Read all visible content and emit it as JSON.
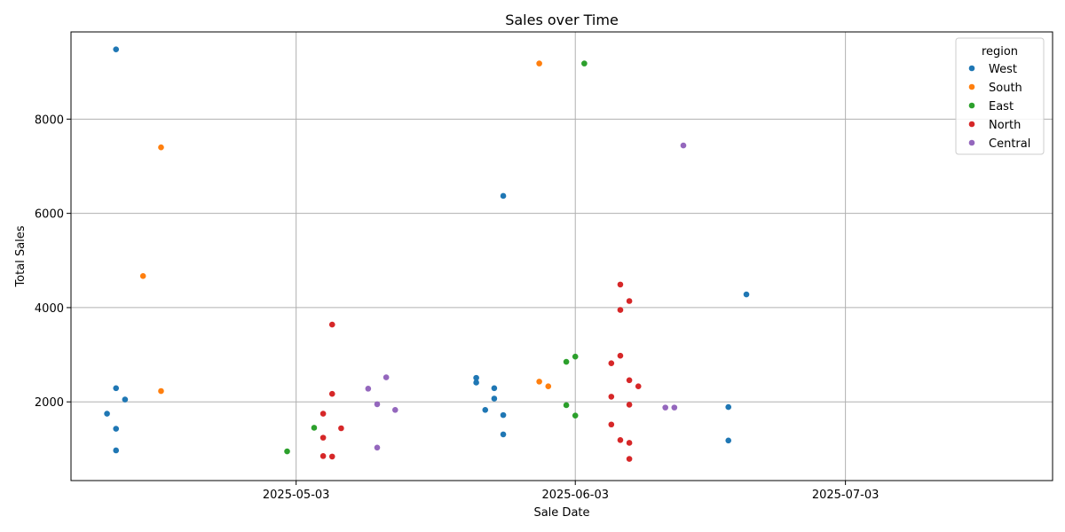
{
  "chart_data": {
    "type": "scatter",
    "title": "Sales over Time",
    "xlabel": "Sale Date",
    "ylabel": "Total Sales",
    "x_axis_type": "date",
    "xlim": [
      "2025-04-08",
      "2025-07-26"
    ],
    "ylim": [
      330,
      9850
    ],
    "x_ticks": [
      "2025-05-03",
      "2025-06-03",
      "2025-07-03"
    ],
    "y_ticks": [
      2000,
      4000,
      6000,
      8000
    ],
    "grid": true,
    "legend": {
      "title": "region",
      "placement": "top-right"
    },
    "series": [
      {
        "name": "West",
        "color": "#1f77b4",
        "points": [
          {
            "x": "2025-04-13",
            "y": 9480
          },
          {
            "x": "2025-04-13",
            "y": 2290
          },
          {
            "x": "2025-04-14",
            "y": 2050
          },
          {
            "x": "2025-04-12",
            "y": 1750
          },
          {
            "x": "2025-04-13",
            "y": 1430
          },
          {
            "x": "2025-04-13",
            "y": 970
          },
          {
            "x": "2025-05-23",
            "y": 2510
          },
          {
            "x": "2025-05-23",
            "y": 2410
          },
          {
            "x": "2025-05-25",
            "y": 2290
          },
          {
            "x": "2025-05-25",
            "y": 2070
          },
          {
            "x": "2025-05-24",
            "y": 1830
          },
          {
            "x": "2025-05-26",
            "y": 1720
          },
          {
            "x": "2025-05-26",
            "y": 1310
          },
          {
            "x": "2025-05-26",
            "y": 6370
          },
          {
            "x": "2025-06-22",
            "y": 4280
          },
          {
            "x": "2025-06-20",
            "y": 1890
          },
          {
            "x": "2025-06-20",
            "y": 1180
          }
        ]
      },
      {
        "name": "South",
        "color": "#ff7f0e",
        "points": [
          {
            "x": "2025-04-18",
            "y": 7400
          },
          {
            "x": "2025-04-16",
            "y": 4670
          },
          {
            "x": "2025-04-18",
            "y": 2230
          },
          {
            "x": "2025-05-30",
            "y": 9180
          },
          {
            "x": "2025-05-30",
            "y": 2430
          },
          {
            "x": "2025-05-31",
            "y": 2330
          }
        ]
      },
      {
        "name": "East",
        "color": "#2ca02c",
        "points": [
          {
            "x": "2025-06-04",
            "y": 9180
          },
          {
            "x": "2025-06-03",
            "y": 2960
          },
          {
            "x": "2025-06-02",
            "y": 2850
          },
          {
            "x": "2025-06-02",
            "y": 1930
          },
          {
            "x": "2025-06-03",
            "y": 1710
          },
          {
            "x": "2025-05-05",
            "y": 1450
          },
          {
            "x": "2025-05-02",
            "y": 950
          }
        ]
      },
      {
        "name": "North",
        "color": "#d62728",
        "points": [
          {
            "x": "2025-06-08",
            "y": 4490
          },
          {
            "x": "2025-06-09",
            "y": 4140
          },
          {
            "x": "2025-06-08",
            "y": 3950
          },
          {
            "x": "2025-06-08",
            "y": 2980
          },
          {
            "x": "2025-06-07",
            "y": 2820
          },
          {
            "x": "2025-06-09",
            "y": 2460
          },
          {
            "x": "2025-06-10",
            "y": 2330
          },
          {
            "x": "2025-06-07",
            "y": 2110
          },
          {
            "x": "2025-06-09",
            "y": 1940
          },
          {
            "x": "2025-06-07",
            "y": 1520
          },
          {
            "x": "2025-06-08",
            "y": 1190
          },
          {
            "x": "2025-06-09",
            "y": 1130
          },
          {
            "x": "2025-06-09",
            "y": 790
          },
          {
            "x": "2025-05-07",
            "y": 3640
          },
          {
            "x": "2025-05-07",
            "y": 2170
          },
          {
            "x": "2025-05-06",
            "y": 1750
          },
          {
            "x": "2025-05-08",
            "y": 1440
          },
          {
            "x": "2025-05-06",
            "y": 1240
          },
          {
            "x": "2025-05-06",
            "y": 850
          },
          {
            "x": "2025-05-07",
            "y": 840
          }
        ]
      },
      {
        "name": "Central",
        "color": "#9467bd",
        "points": [
          {
            "x": "2025-06-15",
            "y": 7440
          },
          {
            "x": "2025-05-13",
            "y": 2520
          },
          {
            "x": "2025-05-11",
            "y": 2280
          },
          {
            "x": "2025-05-12",
            "y": 1950
          },
          {
            "x": "2025-05-14",
            "y": 1830
          },
          {
            "x": "2025-05-12",
            "y": 1030
          },
          {
            "x": "2025-06-13",
            "y": 1880
          },
          {
            "x": "2025-06-14",
            "y": 1880
          }
        ]
      }
    ]
  }
}
